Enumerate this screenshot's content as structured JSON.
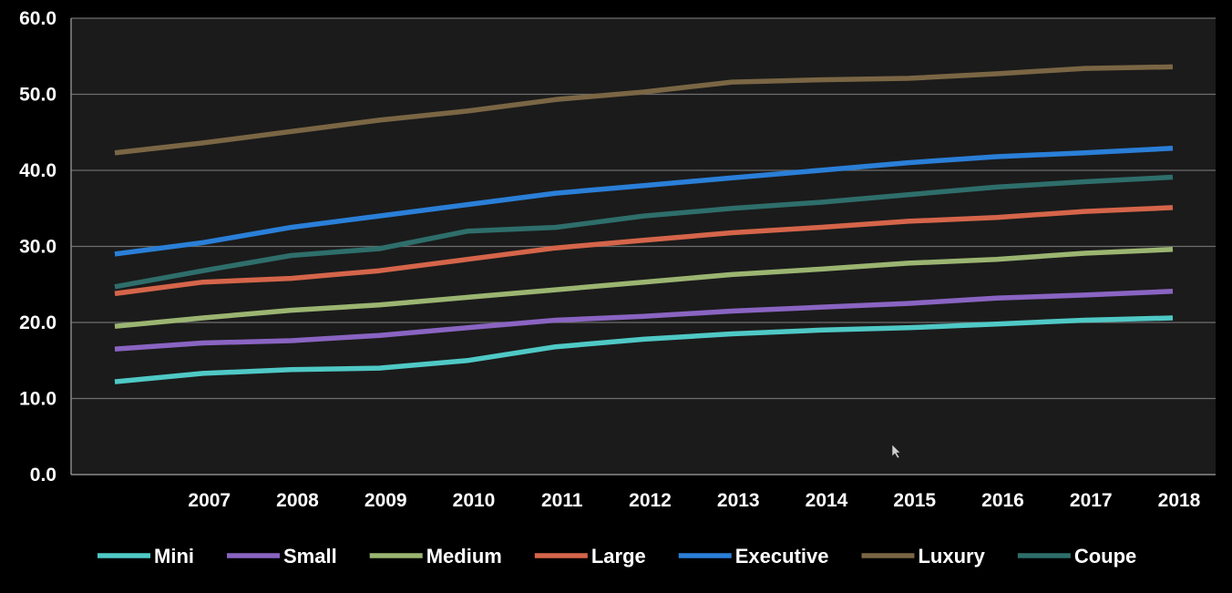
{
  "chart_data": {
    "type": "line",
    "categories": [
      "",
      "2007",
      "2008",
      "2009",
      "2010",
      "2011",
      "2012",
      "2013",
      "2014",
      "2015",
      "2016",
      "2017",
      "2018"
    ],
    "ylim": [
      0,
      60
    ],
    "yticks": [
      "0.0",
      "10.0",
      "20.0",
      "30.0",
      "40.0",
      "50.0",
      "60.0"
    ],
    "grid": true,
    "legend_position": "bottom",
    "plot_background": "#1b1b1b",
    "page_background": "#000000",
    "series": [
      {
        "name": "Mini",
        "color": "#4fc9c6",
        "values": [
          12.2,
          13.3,
          13.8,
          14.0,
          15.0,
          16.8,
          17.8,
          18.5,
          19.0,
          19.3,
          19.8,
          20.3,
          20.6
        ]
      },
      {
        "name": "Small",
        "color": "#8a64c2",
        "values": [
          16.5,
          17.3,
          17.6,
          18.3,
          19.3,
          20.3,
          20.8,
          21.5,
          22.0,
          22.5,
          23.2,
          23.6,
          24.1
        ]
      },
      {
        "name": "Medium",
        "color": "#9bb571",
        "values": [
          19.5,
          20.6,
          21.6,
          22.3,
          23.3,
          24.3,
          25.3,
          26.3,
          27.0,
          27.8,
          28.3,
          29.1,
          29.6
        ]
      },
      {
        "name": "Large",
        "color": "#d5654a",
        "values": [
          23.8,
          25.3,
          25.8,
          26.8,
          28.3,
          29.8,
          30.8,
          31.8,
          32.5,
          33.3,
          33.8,
          34.6,
          35.1
        ]
      },
      {
        "name": "Executive",
        "color": "#2a7fd8",
        "values": [
          29.0,
          30.5,
          32.5,
          34.0,
          35.5,
          37.0,
          38.0,
          39.0,
          40.0,
          41.0,
          41.8,
          42.3,
          42.9
        ]
      },
      {
        "name": "Luxury",
        "color": "#7a6644",
        "values": [
          42.3,
          43.6,
          45.1,
          46.6,
          47.8,
          49.3,
          50.3,
          51.6,
          51.9,
          52.1,
          52.7,
          53.4,
          53.6
        ]
      },
      {
        "name": "Coupe",
        "color": "#2e6e6b",
        "values": [
          24.7,
          26.8,
          28.8,
          29.7,
          32.0,
          32.5,
          34.0,
          35.0,
          35.8,
          36.8,
          37.8,
          38.5,
          39.1
        ]
      }
    ]
  }
}
